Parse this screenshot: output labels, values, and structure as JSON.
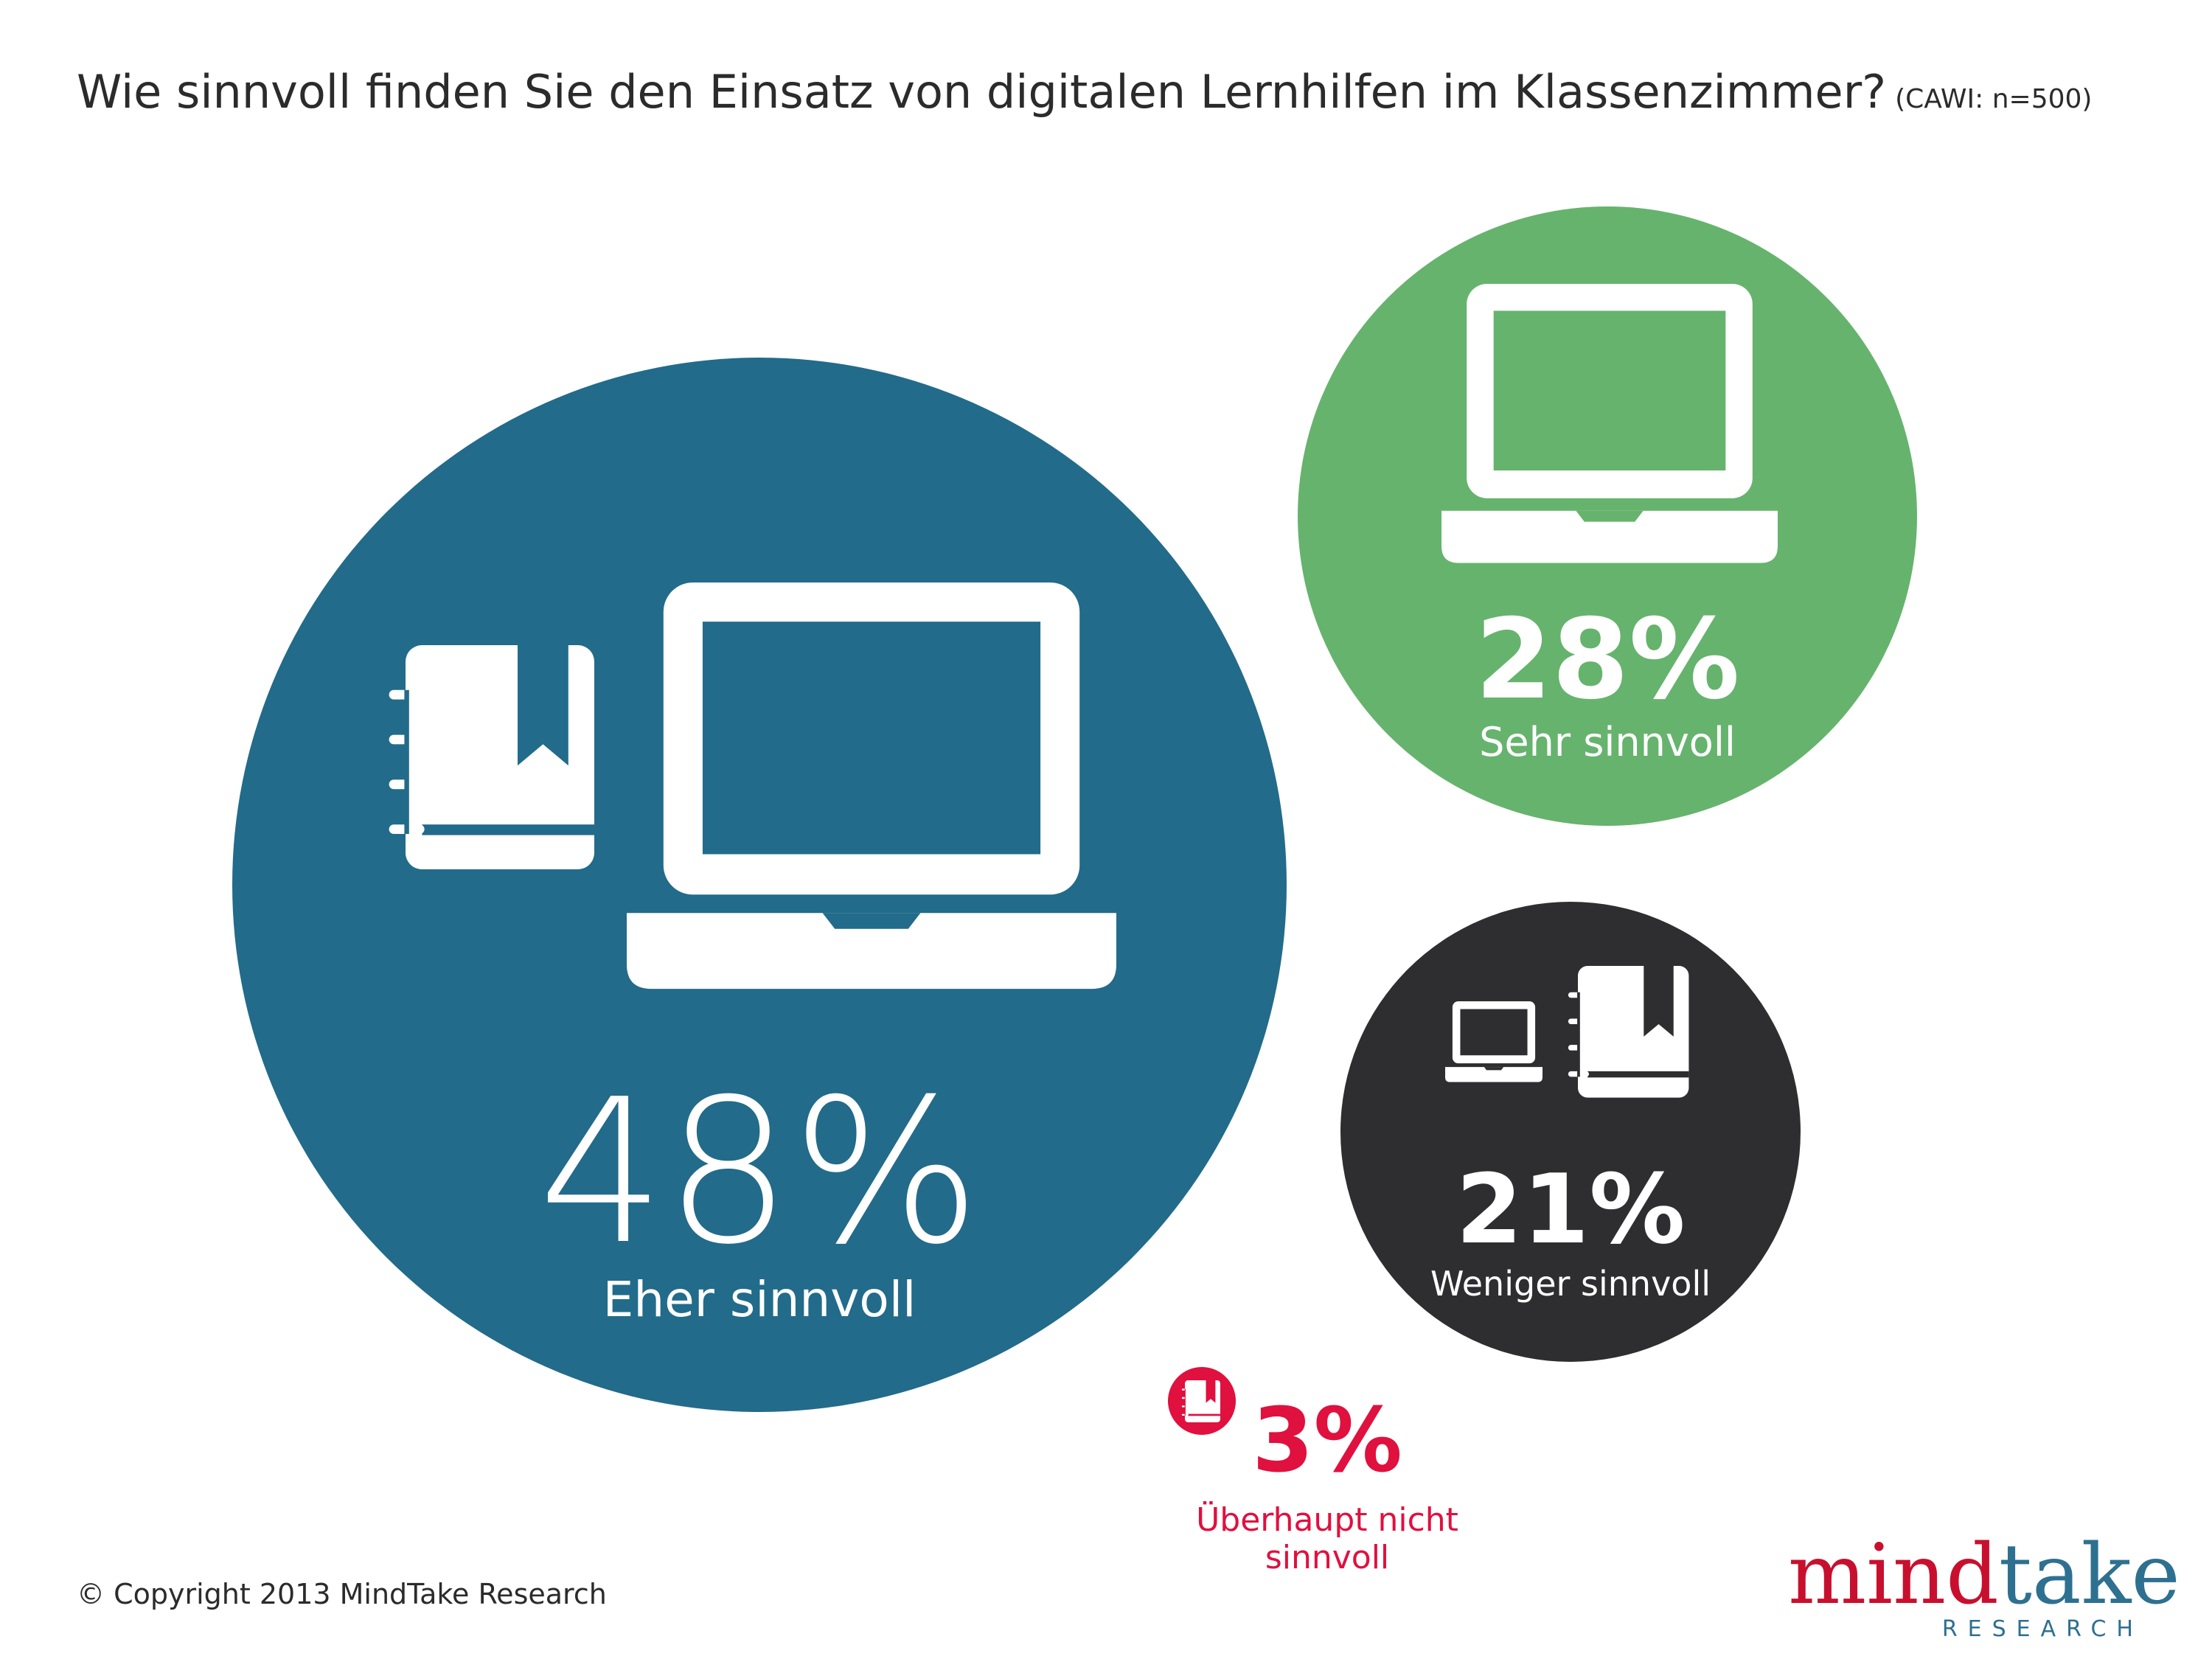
{
  "title": "Wie sinnvoll finden Sie den Einsatz von digitalen Lernhilfen im Klassenzimmer?",
  "sample_note": "(CAWI: n=500)",
  "chart_data": {
    "type": "bubble",
    "title": "Wie sinnvoll finden Sie den Einsatz von digitalen Lernhilfen im Klassenzimmer?",
    "unit": "%",
    "series": [
      {
        "category": "Eher sinnvoll",
        "value": 48,
        "label": "48%",
        "color": "#226b8a",
        "icons": [
          "book-icon",
          "laptop-icon"
        ]
      },
      {
        "category": "Sehr sinnvoll",
        "value": 28,
        "label": "28%",
        "color": "#66b36d",
        "icons": [
          "laptop-icon"
        ]
      },
      {
        "category": "Weniger sinnvoll",
        "value": 21,
        "label": "21%",
        "color": "#2e2e30",
        "icons": [
          "laptop-icon",
          "book-icon"
        ]
      },
      {
        "category": "Überhaupt nicht sinnvoll",
        "value": 3,
        "label": "3%",
        "color": "#e0103f",
        "icons": [
          "book-icon"
        ]
      }
    ]
  },
  "footer": {
    "copyright": "© Copyright 2013 MindTake Research"
  },
  "logo": {
    "part1": "mind",
    "part2": "take",
    "sub": "RESEARCH",
    "color1": "#c8102e",
    "color2": "#2e7090"
  }
}
